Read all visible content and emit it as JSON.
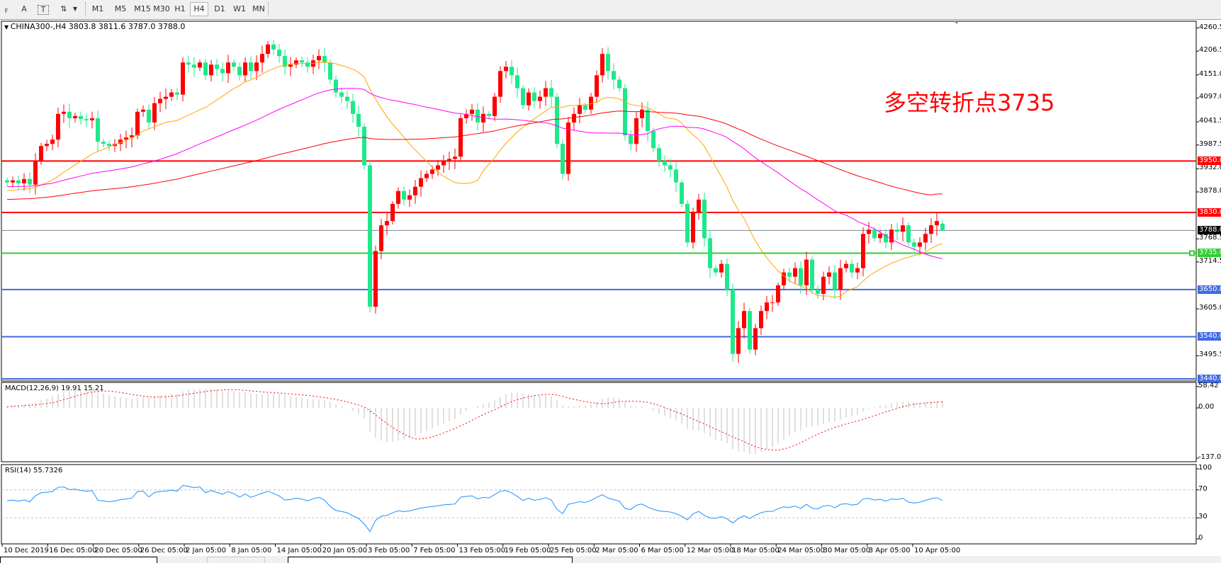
{
  "toolbar": {
    "tools": [
      {
        "name": "grid-icon",
        "glyph": "F"
      },
      {
        "name": "text-icon",
        "glyph": "A"
      },
      {
        "name": "text-label-icon",
        "glyph": "T"
      },
      {
        "name": "arrows-icon",
        "glyph": "⇅"
      }
    ],
    "timeframes": [
      "M1",
      "M5",
      "M15",
      "M30",
      "H1",
      "H4",
      "D1",
      "W1",
      "MN"
    ],
    "active_timeframe": "H4"
  },
  "chart": {
    "symbol_line": "CHINA300-,H4  3803.8 3811.6 3787.0 3788.0",
    "annotation": "多空转折点3735",
    "annotation_color": "#ff0000",
    "up_color": "#ff0000",
    "down_color": "#1de98b"
  },
  "chart_data": [
    {
      "type": "candlestick",
      "symbol": "CHINA300-",
      "timeframe": "H4",
      "ohlc_current": {
        "open": 3803.8,
        "high": 3811.6,
        "low": 3787.0,
        "close": 3788.0
      },
      "price_axis_ticks": [
        "4260.5",
        "4206.5",
        "4151.0",
        "4097.0",
        "4041.5",
        "3987.5",
        "3932.0",
        "3878.0",
        "3768.5",
        "3714.5",
        "3605.0",
        "3495.5"
      ],
      "ylim": [
        3440,
        4260.5
      ],
      "x_tick_labels": [
        "10 Dec 2019",
        "16 Dec 05:00",
        "20 Dec 05:00",
        "26 Dec 05:00",
        "2 Jan 05:00",
        "8 Jan 05:00",
        "14 Jan 05:00",
        "20 Jan 05:00",
        "3 Feb 05:00",
        "7 Feb 05:00",
        "13 Feb 05:00",
        "19 Feb 05:00",
        "25 Feb 05:00",
        "2 Mar 05:00",
        "6 Mar 05:00",
        "12 Mar 05:00",
        "18 Mar 05:00",
        "24 Mar 05:00",
        "30 Mar 05:00",
        "3 Apr 05:00",
        "10 Apr 05:00"
      ],
      "closes": [
        3900,
        3905,
        3898,
        3908,
        3895,
        3950,
        3985,
        3990,
        4000,
        4060,
        4065,
        4050,
        4055,
        4048,
        4045,
        4050,
        3995,
        3990,
        3985,
        3990,
        4000,
        4005,
        4010,
        4065,
        4070,
        4040,
        4085,
        4095,
        4100,
        4110,
        4105,
        4180,
        4175,
        4168,
        4180,
        4150,
        4175,
        4165,
        4155,
        4180,
        4170,
        4150,
        4180,
        4160,
        4180,
        4200,
        4222,
        4210,
        4195,
        4170,
        4175,
        4185,
        4180,
        4170,
        4185,
        4195,
        4180,
        4140,
        4110,
        4100,
        4090,
        4060,
        4030,
        3940,
        3610,
        3740,
        3800,
        3810,
        3850,
        3880,
        3860,
        3870,
        3890,
        3910,
        3920,
        3930,
        3940,
        3950,
        3955,
        3960,
        4050,
        4060,
        4070,
        4040,
        4060,
        4055,
        4100,
        4160,
        4170,
        4150,
        4120,
        4080,
        4110,
        4090,
        4100,
        4120,
        4100,
        3990,
        3920,
        4040,
        4060,
        4080,
        4070,
        4100,
        4150,
        4200,
        4160,
        4140,
        4120,
        4010,
        3990,
        4050,
        4070,
        4020,
        3980,
        3950,
        3940,
        3930,
        3900,
        3850,
        3760,
        3830,
        3860,
        3770,
        3700,
        3690,
        3710,
        3650,
        3500,
        3560,
        3600,
        3510,
        3560,
        3600,
        3620,
        3620,
        3660,
        3690,
        3680,
        3700,
        3660,
        3720,
        3650,
        3640,
        3680,
        3690,
        3650,
        3700,
        3710,
        3690,
        3700,
        3780,
        3790,
        3770,
        3780,
        3760,
        3790,
        3785,
        3800,
        3760,
        3750,
        3760,
        3780,
        3800,
        3810,
        3788
      ],
      "moving_averages": [
        {
          "color": "#ffa500"
        },
        {
          "color": "#ff00ff"
        },
        {
          "color": "#ff0000"
        }
      ],
      "horizontal_lines": [
        {
          "price": "3950.0",
          "color": "#ff0000"
        },
        {
          "price": "3830.0",
          "color": "#ff0000"
        },
        {
          "price": "3788.0",
          "color": "#000000",
          "line_color": "#778899"
        },
        {
          "price": "3735.0",
          "color": "#32cd32"
        },
        {
          "price": "3650.0",
          "color": "#4169e1"
        },
        {
          "price": "3540.0",
          "color": "#4169e1"
        },
        {
          "price": "3440.0",
          "color": "#4169e1"
        }
      ]
    },
    {
      "type": "bar",
      "label": "MACD(12,26,9) 19.91 15.21",
      "macd": 19.91,
      "signal": 15.21,
      "axis_ticks": [
        "58.42",
        "0.00",
        "-137.09"
      ],
      "ylim": [
        -137.09,
        58.42
      ],
      "histogram_color": "#c0c0c0",
      "signal_color": "#ff0000"
    },
    {
      "type": "line",
      "label": "RSI(14) 55.7326",
      "value": 55.7326,
      "axis_ticks": [
        "100",
        "70",
        "30",
        "0"
      ],
      "ylim": [
        0,
        100
      ],
      "levels": [
        70,
        30
      ],
      "line_color": "#1e90ff"
    }
  ]
}
